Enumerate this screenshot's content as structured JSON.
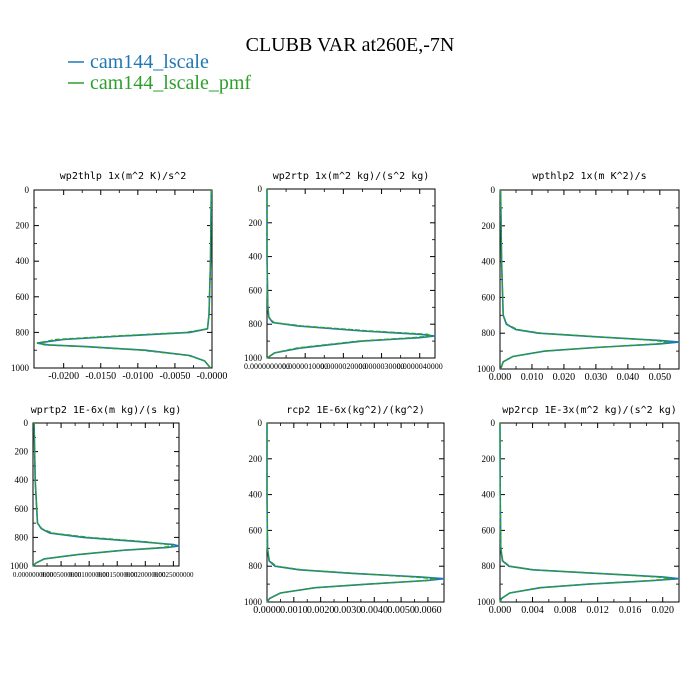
{
  "figure": {
    "title": "CLUBB VAR at260E,-7N",
    "legend": [
      {
        "label": "cam144_lscale",
        "color": "#1f77b4"
      },
      {
        "label": "cam144_lscale_pmf",
        "color": "#2ca02c"
      }
    ]
  },
  "chart_data": [
    {
      "type": "line",
      "title": "wp2thlp   1x(m^2 K)/s^2",
      "xlim": [
        -0.024,
        0.0
      ],
      "ylim": [
        1000,
        0
      ],
      "x_ticks": [
        "-0.0200",
        "-0.0150",
        "-0.0100",
        "-0.0050",
        "-0.0000"
      ],
      "x_tick_values": [
        -0.02,
        -0.015,
        -0.01,
        -0.005,
        0.0
      ],
      "y_ticks": [
        "0",
        "200",
        "400",
        "600",
        "800",
        "1000"
      ],
      "y_tick_values": [
        0,
        200,
        400,
        600,
        800,
        1000
      ],
      "y": [
        0,
        400,
        700,
        780,
        800,
        820,
        840,
        860,
        870,
        880,
        900,
        930,
        960,
        1000
      ],
      "series": [
        {
          "name": "cam144_lscale",
          "color": "#1f77b4",
          "values": [
            -0.0001,
            -0.0002,
            -0.0004,
            -0.0006,
            -0.003,
            -0.012,
            -0.02,
            -0.0236,
            -0.022,
            -0.017,
            -0.009,
            -0.003,
            -0.001,
            -0.0002
          ]
        },
        {
          "name": "cam144_lscale_pmf",
          "color": "#2ca02c",
          "values": [
            -0.0001,
            -0.0002,
            -0.0004,
            -0.0006,
            -0.0035,
            -0.013,
            -0.021,
            -0.0236,
            -0.0225,
            -0.0175,
            -0.0095,
            -0.0032,
            -0.001,
            -0.0002
          ]
        }
      ]
    },
    {
      "type": "line",
      "title": "wp2rtp   1x(m^2 kg)/(s^2 kg)",
      "xlim": [
        0.0,
        4.4e-06
      ],
      "ylim": [
        1000,
        0
      ],
      "x_ticks": [
        "0.0000000000",
        "0.0000010000",
        "0.0000020000",
        "0.0000030000",
        "0.0000040000"
      ],
      "x_tick_values": [
        0.0,
        1e-06,
        2e-06,
        3e-06,
        4e-06
      ],
      "y_ticks": [
        "0",
        "200",
        "400",
        "600",
        "800",
        "1000"
      ],
      "y_tick_values": [
        0,
        200,
        400,
        600,
        800,
        1000
      ],
      "y": [
        0,
        400,
        700,
        760,
        790,
        810,
        840,
        860,
        870,
        880,
        900,
        940,
        970,
        1000
      ],
      "series": [
        {
          "name": "cam144_lscale",
          "color": "#1f77b4",
          "values": [
            0.0,
            0.0,
            2e-08,
            5e-08,
            1.5e-07,
            8e-07,
            2.5e-06,
            4e-06,
            4.4e-06,
            4e-06,
            2.5e-06,
            9e-07,
            2e-07,
            0.0
          ]
        },
        {
          "name": "cam144_lscale_pmf",
          "color": "#2ca02c",
          "values": [
            0.0,
            0.0,
            2e-08,
            5e-08,
            1.8e-07,
            9e-07,
            2.7e-06,
            4.2e-06,
            4.3e-06,
            3.8e-06,
            2.4e-06,
            8e-07,
            2e-07,
            0.0
          ]
        }
      ]
    },
    {
      "type": "line",
      "title": "wpthlp2   1x(m K^2)/s",
      "xlim": [
        0.0,
        0.056
      ],
      "ylim": [
        1000,
        0
      ],
      "x_ticks": [
        "0.000",
        "0.010",
        "0.020",
        "0.030",
        "0.040",
        "0.050"
      ],
      "x_tick_values": [
        0.0,
        0.01,
        0.02,
        0.03,
        0.04,
        0.05
      ],
      "y_ticks": [
        "0",
        "200",
        "400",
        "600",
        "800",
        "1000"
      ],
      "y_tick_values": [
        0,
        200,
        400,
        600,
        800,
        1000
      ],
      "y": [
        0,
        400,
        700,
        750,
        780,
        800,
        820,
        840,
        850,
        860,
        880,
        900,
        930,
        960,
        1000
      ],
      "series": [
        {
          "name": "cam144_lscale",
          "color": "#1f77b4",
          "values": [
            0.0002,
            0.0005,
            0.001,
            0.002,
            0.005,
            0.012,
            0.03,
            0.05,
            0.056,
            0.05,
            0.03,
            0.014,
            0.004,
            0.001,
            0.0002
          ]
        },
        {
          "name": "cam144_lscale_pmf",
          "color": "#2ca02c",
          "values": [
            0.0002,
            0.0005,
            0.001,
            0.0022,
            0.0055,
            0.013,
            0.031,
            0.048,
            0.053,
            0.049,
            0.03,
            0.014,
            0.004,
            0.001,
            0.0002
          ]
        }
      ]
    },
    {
      "type": "line",
      "title": "wprtp2   1E-6x(m kg)/(s kg)",
      "xlim": [
        0.0,
        0.0026
      ],
      "ylim": [
        1000,
        0
      ],
      "x_ticks": [
        "0.0000000000",
        "0.0005000000",
        "0.0010000000",
        "0.0015000000",
        "0.0020000000",
        "0.0025000000"
      ],
      "x_tick_values": [
        0.0,
        0.0005,
        0.001,
        0.0015,
        0.002,
        0.0025
      ],
      "y_ticks": [
        "0",
        "200",
        "400",
        "600",
        "800",
        "1000"
      ],
      "y_tick_values": [
        0,
        200,
        400,
        600,
        800,
        1000
      ],
      "y": [
        0,
        400,
        700,
        740,
        770,
        800,
        830,
        850,
        860,
        870,
        890,
        920,
        950,
        980,
        1000
      ],
      "series": [
        {
          "name": "cam144_lscale",
          "color": "#1f77b4",
          "values": [
            2e-05,
            4e-05,
            8e-05,
            0.00015,
            0.0003,
            0.0009,
            0.0019,
            0.0025,
            0.0026,
            0.0024,
            0.0016,
            0.0008,
            0.0002,
            5e-05,
            0.0
          ]
        },
        {
          "name": "cam144_lscale_pmf",
          "color": "#2ca02c",
          "values": [
            2e-05,
            4e-05,
            8e-05,
            0.00016,
            0.00035,
            0.001,
            0.002,
            0.0024,
            0.0025,
            0.0023,
            0.0016,
            0.0008,
            0.0002,
            5e-05,
            0.0
          ]
        }
      ]
    },
    {
      "type": "line",
      "title": "rcp2   1E-6x(kg^2)/(kg^2)",
      "xlim": [
        0.0,
        0.0066
      ],
      "ylim": [
        1000,
        0
      ],
      "x_ticks": [
        "0.0000",
        "0.0010",
        "0.0020",
        "0.0030",
        "0.0040",
        "0.0050",
        "0.0060"
      ],
      "x_tick_values": [
        0.0,
        0.001,
        0.002,
        0.003,
        0.004,
        0.005,
        0.006
      ],
      "y_ticks": [
        "0",
        "200",
        "400",
        "600",
        "800",
        "1000"
      ],
      "y_tick_values": [
        0,
        200,
        400,
        600,
        800,
        1000
      ],
      "y": [
        0,
        400,
        700,
        770,
        800,
        820,
        840,
        860,
        870,
        880,
        900,
        920,
        950,
        980,
        1000
      ],
      "series": [
        {
          "name": "cam144_lscale",
          "color": "#1f77b4",
          "values": [
            0.0,
            0.0,
            2e-05,
            8e-05,
            0.0003,
            0.0012,
            0.0032,
            0.0057,
            0.0066,
            0.006,
            0.0038,
            0.0018,
            0.0005,
            0.0001,
            0.0
          ]
        },
        {
          "name": "cam144_lscale_pmf",
          "color": "#2ca02c",
          "values": [
            0.0,
            0.0,
            2e-05,
            9e-05,
            0.00035,
            0.0013,
            0.0033,
            0.0054,
            0.0063,
            0.0059,
            0.0038,
            0.0018,
            0.0005,
            0.0001,
            0.0
          ]
        }
      ]
    },
    {
      "type": "line",
      "title": "wp2rcp   1E-3x(m^2 kg)/(s^2 kg)",
      "xlim": [
        0.0,
        0.022
      ],
      "ylim": [
        1000,
        0
      ],
      "x_ticks": [
        "0.000",
        "0.004",
        "0.008",
        "0.012",
        "0.016",
        "0.020"
      ],
      "x_tick_values": [
        0.0,
        0.004,
        0.008,
        0.012,
        0.016,
        0.02
      ],
      "y_ticks": [
        "0",
        "200",
        "400",
        "600",
        "800",
        "1000"
      ],
      "y_tick_values": [
        0,
        200,
        400,
        600,
        800,
        1000
      ],
      "y": [
        0,
        400,
        700,
        770,
        800,
        820,
        840,
        860,
        870,
        880,
        900,
        920,
        950,
        980,
        1000
      ],
      "series": [
        {
          "name": "cam144_lscale",
          "color": "#1f77b4",
          "values": [
            0.0,
            2e-05,
            0.0001,
            0.0003,
            0.0011,
            0.004,
            0.012,
            0.02,
            0.022,
            0.019,
            0.011,
            0.005,
            0.0012,
            0.0002,
            0.0
          ]
        },
        {
          "name": "cam144_lscale_pmf",
          "color": "#2ca02c",
          "values": [
            0.0,
            2e-05,
            0.0001,
            0.00035,
            0.0012,
            0.0042,
            0.0122,
            0.0192,
            0.0212,
            0.0186,
            0.0108,
            0.0048,
            0.0012,
            0.0002,
            0.0
          ]
        }
      ]
    }
  ]
}
